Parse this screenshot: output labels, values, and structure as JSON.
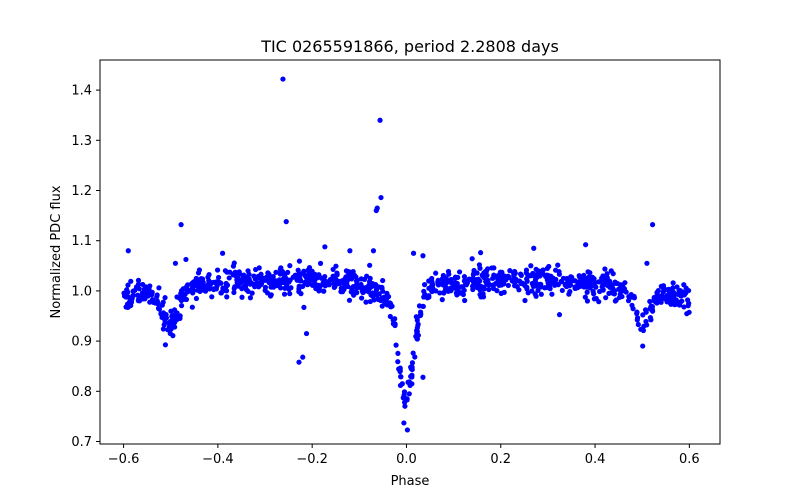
{
  "chart_data": {
    "type": "scatter",
    "title": "TIC 0265591866, period 2.2808 days",
    "xlabel": "Phase",
    "ylabel": "Normalized PDC flux",
    "xlim": [
      -0.65,
      0.665
    ],
    "ylim": [
      0.695,
      1.46
    ],
    "x_ticks": [
      -0.6,
      -0.4,
      -0.2,
      0.0,
      0.2,
      0.4,
      0.6
    ],
    "x_tick_labels": [
      "−0.6",
      "−0.4",
      "−0.2",
      "0.0",
      "0.2",
      "0.4",
      "0.6"
    ],
    "y_ticks": [
      0.7,
      0.8,
      0.9,
      1.0,
      1.1,
      1.2,
      1.3,
      1.4
    ],
    "y_tick_labels": [
      "0.7",
      "0.8",
      "0.9",
      "1.0",
      "1.1",
      "1.2",
      "1.3",
      "1.4"
    ],
    "grid": false,
    "marker_color": "#0000ff",
    "series": [
      {
        "name": "flux",
        "phase_range": [
          -0.6,
          0.6
        ],
        "approx_points": 1100,
        "model": {
          "baseline": 1.0,
          "out_of_eclipse_hump_amplitude": 0.025,
          "primary_eclipse": {
            "center": 0.0,
            "depth": 0.2,
            "half_width": 0.022
          },
          "secondary_eclipses": [
            {
              "center": -0.5,
              "depth": 0.065,
              "half_width": 0.02
            },
            {
              "center": 0.5,
              "depth": 0.065,
              "half_width": 0.02
            }
          ],
          "scatter_sigma": 0.013
        },
        "outliers": [
          {
            "x": -0.262,
            "y": 1.422
          },
          {
            "x": -0.056,
            "y": 1.34
          },
          {
            "x": -0.255,
            "y": 1.138
          },
          {
            "x": -0.478,
            "y": 1.132
          },
          {
            "x": 0.522,
            "y": 1.132
          },
          {
            "x": -0.054,
            "y": 1.186
          },
          {
            "x": -0.062,
            "y": 1.165
          },
          {
            "x": -0.064,
            "y": 1.16
          },
          {
            "x": -0.228,
            "y": 0.858
          },
          {
            "x": -0.22,
            "y": 0.868
          },
          {
            "x": -0.212,
            "y": 0.915
          },
          {
            "x": -0.07,
            "y": 1.08
          },
          {
            "x": -0.39,
            "y": 1.075
          },
          {
            "x": 0.002,
            "y": 0.723
          },
          {
            "x": -0.004,
            "y": 0.778
          },
          {
            "x": 0.006,
            "y": 0.795
          },
          {
            "x": 0.035,
            "y": 0.828
          },
          {
            "x": 0.035,
            "y": 1.07
          },
          {
            "x": 0.015,
            "y": 1.075
          },
          {
            "x": -0.12,
            "y": 1.08
          },
          {
            "x": 0.27,
            "y": 1.085
          },
          {
            "x": 0.38,
            "y": 1.092
          },
          {
            "x": -0.59,
            "y": 1.08
          },
          {
            "x": 0.51,
            "y": 1.055
          },
          {
            "x": -0.49,
            "y": 1.055
          }
        ]
      }
    ]
  }
}
